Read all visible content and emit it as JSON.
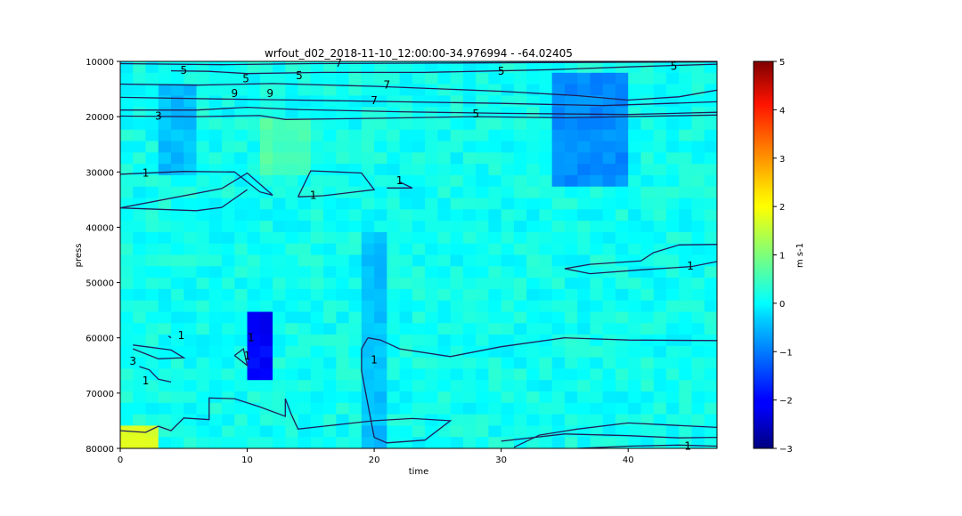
{
  "chart_data": {
    "type": "heatmap",
    "title": "wrfout_d02_2018-11-10_12:00:00-34.976994 - -64.02405",
    "xlabel": "time",
    "ylabel": "press",
    "xlim": [
      0,
      47
    ],
    "ylim": [
      80000,
      10000
    ],
    "y_inverted": true,
    "x_ticks": [
      0,
      10,
      20,
      30,
      40
    ],
    "x_tick_labels": [
      "0",
      "10",
      "20",
      "30",
      "40"
    ],
    "y_ticks": [
      10000,
      20000,
      30000,
      40000,
      50000,
      60000,
      70000,
      80000
    ],
    "y_tick_labels": [
      "10000",
      "20000",
      "30000",
      "40000",
      "50000",
      "60000",
      "70000",
      "80000"
    ],
    "colormap": "jet",
    "colorbar": {
      "label": "m s-1",
      "range": [
        -3,
        5
      ],
      "ticks": [
        -3,
        -2,
        -1,
        0,
        1,
        2,
        3,
        4,
        5
      ],
      "tick_labels": [
        "−3",
        "−2",
        "−1",
        "0",
        "1",
        "2",
        "3",
        "4",
        "5"
      ]
    },
    "grid": false,
    "field_description_values": {
      "background_level": 0.1,
      "blue_regions": [
        {
          "time": [
            34,
            40
          ],
          "press": [
            12000,
            33000
          ],
          "value": -0.9
        },
        {
          "time": [
            10,
            12
          ],
          "press": [
            56000,
            67000
          ],
          "value": -2.0
        },
        {
          "time": [
            3,
            6
          ],
          "press": [
            14000,
            30000
          ],
          "value": -0.5
        },
        {
          "time": [
            19,
            21
          ],
          "press": [
            40000,
            80000
          ],
          "value": -0.5
        }
      ],
      "green_regions": [
        {
          "time": [
            11,
            15
          ],
          "press": [
            20000,
            30000
          ],
          "value": 0.6
        },
        {
          "time": [
            0,
            3
          ],
          "press": [
            75000,
            80000
          ],
          "value": 1.8
        }
      ]
    },
    "contour_labels": [
      {
        "text": "7",
        "x": 17.2,
        "y": 10300
      },
      {
        "text": "5",
        "x": 5.0,
        "y": 11600
      },
      {
        "text": "5",
        "x": 9.9,
        "y": 13100
      },
      {
        "text": "5",
        "x": 14.1,
        "y": 12600
      },
      {
        "text": "5",
        "x": 30.0,
        "y": 11800
      },
      {
        "text": "5",
        "x": 43.6,
        "y": 10900
      },
      {
        "text": "7",
        "x": 21.0,
        "y": 14300
      },
      {
        "text": "7",
        "x": 20.0,
        "y": 17100
      },
      {
        "text": "9",
        "x": 9.0,
        "y": 15800
      },
      {
        "text": "9",
        "x": 11.8,
        "y": 15800
      },
      {
        "text": "3",
        "x": 3.0,
        "y": 19900
      },
      {
        "text": "5",
        "x": 28.0,
        "y": 19500
      },
      {
        "text": "1",
        "x": 2.0,
        "y": 30200
      },
      {
        "text": "1",
        "x": 15.2,
        "y": 34200
      },
      {
        "text": "1",
        "x": 22.0,
        "y": 31600
      },
      {
        "text": "1",
        "x": 44.9,
        "y": 47000
      },
      {
        "text": "1",
        "x": 4.8,
        "y": 59600
      },
      {
        "text": "1",
        "x": 10.0,
        "y": 63300
      },
      {
        "text": "1",
        "x": 10.3,
        "y": 60000
      },
      {
        "text": "3",
        "x": 1.0,
        "y": 64200
      },
      {
        "text": "1",
        "x": 2.0,
        "y": 67800
      },
      {
        "text": "1",
        "x": 20.0,
        "y": 64000
      },
      {
        "text": "1",
        "x": 44.7,
        "y": 79600
      }
    ]
  }
}
